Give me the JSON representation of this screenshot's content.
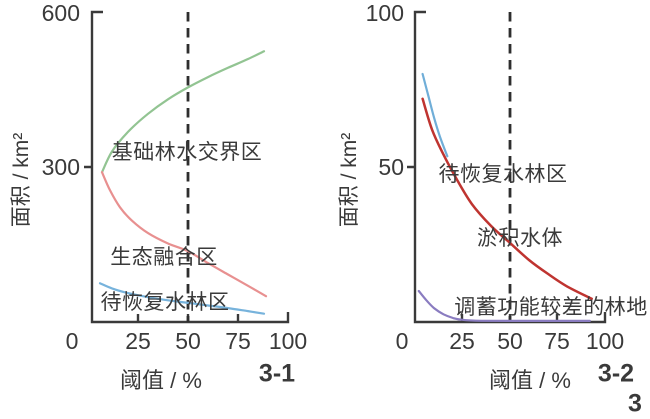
{
  "figure_title": "",
  "text_color": "#3a3a3a",
  "chart_data": [
    {
      "id": "3-1",
      "type": "line",
      "xlabel": "阈值 / %",
      "ylabel": "面积 / km²",
      "xlim": [
        0,
        100
      ],
      "ylim": [
        0,
        600
      ],
      "x_ticks": [
        "0",
        "25",
        "50",
        "75",
        "100"
      ],
      "y_ticks": [
        "300",
        "600"
      ],
      "grid": false,
      "dashed_reference_x": 50,
      "caption": "3-1",
      "series": [
        {
          "name": "基础林水交界区",
          "color": "#92c492",
          "stroke_width": 2.2,
          "points": [
            [
              7,
              290
            ],
            [
              12,
              330
            ],
            [
              20,
              368
            ],
            [
              30,
              403
            ],
            [
              40,
              431
            ],
            [
              50,
              454
            ],
            [
              60,
              474
            ],
            [
              70,
              492
            ],
            [
              80,
              509
            ],
            [
              88,
              524
            ]
          ]
        },
        {
          "name": "生态融合区",
          "color": "#e89090",
          "stroke_width": 2.2,
          "points": [
            [
              7,
              290
            ],
            [
              11,
              255
            ],
            [
              16,
              222
            ],
            [
              22,
              196
            ],
            [
              30,
              172
            ],
            [
              40,
              152
            ],
            [
              50,
              137
            ],
            [
              60,
              114
            ],
            [
              70,
              92
            ],
            [
              80,
              70
            ],
            [
              89,
              50
            ]
          ]
        },
        {
          "name": "待恢复水林区",
          "color": "#77b3dc",
          "stroke_width": 2.2,
          "points": [
            [
              6,
              75
            ],
            [
              12,
              65
            ],
            [
              20,
              56
            ],
            [
              30,
              48
            ],
            [
              40,
              42
            ],
            [
              50,
              37
            ],
            [
              60,
              32
            ],
            [
              70,
              27
            ],
            [
              80,
              21
            ],
            [
              88,
              16
            ]
          ]
        }
      ]
    },
    {
      "id": "3-2",
      "type": "line",
      "xlabel": "阈值 / %",
      "ylabel": "面积 / km²",
      "xlim": [
        0,
        100
      ],
      "ylim": [
        0,
        100
      ],
      "x_ticks": [
        "0",
        "25",
        "50",
        "75",
        "100"
      ],
      "y_ticks": [
        "50",
        "100"
      ],
      "grid": false,
      "dashed_reference_x": 50,
      "caption": "3-2",
      "extra_caption": "3",
      "series": [
        {
          "name": "待恢复水林区",
          "color": "#70aed8",
          "stroke_width": 2.2,
          "points": [
            [
              4,
              80
            ],
            [
              7,
              73
            ],
            [
              10,
              66
            ],
            [
              13,
              60
            ],
            [
              17,
              53.5
            ]
          ]
        },
        {
          "name": "淤积水体",
          "color": "#bf3430",
          "stroke_width": 2.5,
          "points": [
            [
              4,
              72
            ],
            [
              9,
              62
            ],
            [
              15,
              54
            ],
            [
              22,
              46
            ],
            [
              30,
              38
            ],
            [
              40,
              31
            ],
            [
              50,
              25.5
            ],
            [
              60,
              20
            ],
            [
              70,
              15.5
            ],
            [
              80,
              11.5
            ],
            [
              93,
              7.5
            ]
          ]
        },
        {
          "name": "调蓄功能较差的林地",
          "color": "#8a7cc0",
          "stroke_width": 2.2,
          "points": [
            [
              2,
              10
            ],
            [
              6,
              7
            ],
            [
              10,
              4.5
            ],
            [
              15,
              2.5
            ],
            [
              20,
              1.3
            ],
            [
              25,
              0.7
            ],
            [
              35,
              0.4
            ],
            [
              50,
              0.35
            ],
            [
              75,
              0.35
            ],
            [
              92,
              0.35
            ]
          ]
        }
      ]
    }
  ]
}
